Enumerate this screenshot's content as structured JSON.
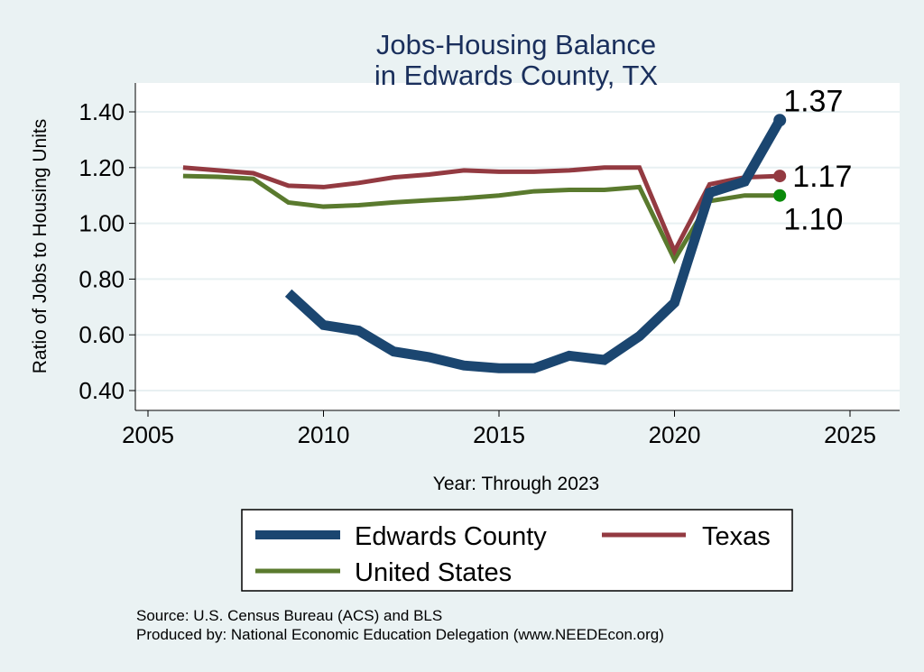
{
  "chart_data": {
    "type": "line",
    "title": "Jobs-Housing Balance",
    "subtitle": "in Edwards County, TX",
    "xlabel": "Year: Through 2023",
    "ylabel": "Ratio of Jobs to Housing Units",
    "xlim": [
      2005,
      2026
    ],
    "ylim": [
      0.35,
      1.45
    ],
    "xticks": [
      "2005",
      "2010",
      "2015",
      "2020",
      "2025"
    ],
    "yticks": [
      "0.40",
      "0.60",
      "0.80",
      "1.00",
      "1.20",
      "1.40"
    ],
    "grid": true,
    "legend_position": "bottom",
    "series": [
      {
        "name": "Edwards County",
        "color": "#1b4670",
        "x": [
          2009,
          2010,
          2011,
          2012,
          2013,
          2014,
          2015,
          2016,
          2017,
          2018,
          2019,
          2020,
          2021,
          2022,
          2023
        ],
        "y": [
          0.75,
          0.635,
          0.615,
          0.54,
          0.52,
          0.49,
          0.48,
          0.48,
          0.525,
          0.51,
          0.595,
          0.715,
          1.11,
          1.15,
          1.37
        ],
        "end_label": "1.37"
      },
      {
        "name": "Texas",
        "color": "#933a41",
        "x": [
          2006,
          2007,
          2008,
          2009,
          2010,
          2011,
          2012,
          2013,
          2014,
          2015,
          2016,
          2017,
          2018,
          2019,
          2020,
          2021,
          2022,
          2023
        ],
        "y": [
          1.2,
          1.19,
          1.18,
          1.135,
          1.13,
          1.145,
          1.165,
          1.175,
          1.19,
          1.185,
          1.185,
          1.19,
          1.2,
          1.2,
          0.9,
          1.14,
          1.165,
          1.17
        ],
        "end_label": "1.17"
      },
      {
        "name": "United States",
        "color": "#5a7a2e",
        "end_marker_color": "#0a8a0a",
        "x": [
          2006,
          2007,
          2008,
          2009,
          2010,
          2011,
          2012,
          2013,
          2014,
          2015,
          2016,
          2017,
          2018,
          2019,
          2020,
          2021,
          2022,
          2023
        ],
        "y": [
          1.17,
          1.167,
          1.16,
          1.075,
          1.06,
          1.065,
          1.075,
          1.083,
          1.09,
          1.1,
          1.115,
          1.12,
          1.12,
          1.13,
          0.87,
          1.08,
          1.1,
          1.1
        ],
        "end_label": "1.10"
      }
    ],
    "notes": [
      "Source: U.S. Census Bureau (ACS) and BLS",
      "Produced by: National Economic Education Delegation (www.NEEDEcon.org)"
    ]
  }
}
